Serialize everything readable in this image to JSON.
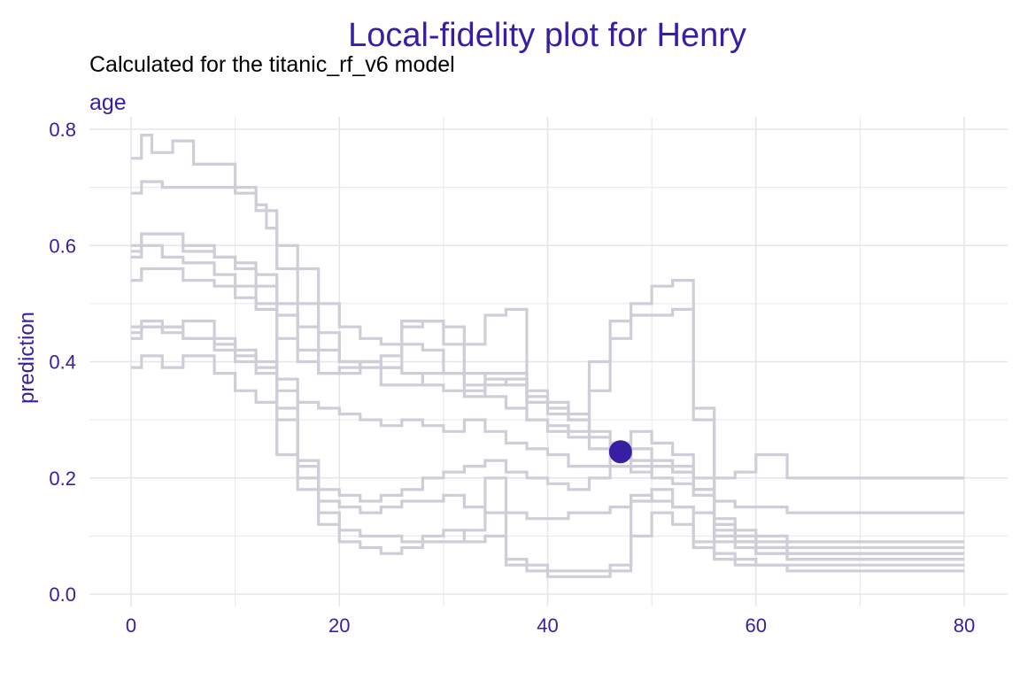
{
  "chart_data": {
    "type": "line",
    "title": "Local-fidelity plot for Henry",
    "subtitle": "Calculated for the titanic_rf_v6 model",
    "panel_label": "age",
    "xlabel": "",
    "ylabel": "prediction",
    "xlim": [
      -4,
      84
    ],
    "ylim": [
      0,
      0.8
    ],
    "x_ticks": [
      0,
      20,
      40,
      60,
      80
    ],
    "y_ticks": [
      0.0,
      0.2,
      0.4,
      0.6,
      0.8
    ],
    "y_tick_labels": [
      "0.0",
      "0.2",
      "0.4",
      "0.6",
      "0.8"
    ],
    "grid": true,
    "colors": {
      "accent": "#371ea3",
      "profile": "#ceced9",
      "grid": "#e6e6ea",
      "text": "#000000"
    },
    "observation": {
      "x": 47,
      "y": 0.245
    },
    "series": [
      {
        "x": [
          0,
          1,
          2,
          4,
          6,
          8,
          10,
          12,
          14,
          16,
          18,
          20,
          22,
          24,
          26,
          28,
          30,
          32,
          34,
          36,
          38,
          40,
          42,
          44,
          46,
          48,
          50,
          52,
          54,
          56,
          58,
          60,
          63,
          80
        ],
        "y": [
          0.75,
          0.79,
          0.76,
          0.78,
          0.74,
          0.74,
          0.7,
          0.66,
          0.6,
          0.56,
          0.5,
          0.46,
          0.44,
          0.43,
          0.43,
          0.42,
          0.38,
          0.38,
          0.37,
          0.36,
          0.33,
          0.31,
          0.3,
          0.28,
          0.26,
          0.25,
          0.23,
          0.22,
          0.2,
          0.2,
          0.21,
          0.24,
          0.2,
          0.2
        ]
      },
      {
        "x": [
          0,
          1,
          3,
          5,
          8,
          10,
          12,
          13,
          14,
          16,
          18,
          20,
          22,
          24,
          26,
          28,
          30,
          32,
          34,
          36,
          38,
          40,
          42,
          44,
          46,
          48,
          50,
          52,
          54,
          56,
          58,
          60,
          63,
          80
        ],
        "y": [
          0.69,
          0.71,
          0.7,
          0.7,
          0.7,
          0.69,
          0.67,
          0.63,
          0.56,
          0.5,
          0.45,
          0.4,
          0.39,
          0.39,
          0.38,
          0.36,
          0.35,
          0.35,
          0.34,
          0.32,
          0.3,
          0.28,
          0.27,
          0.25,
          0.24,
          0.23,
          0.22,
          0.21,
          0.18,
          0.16,
          0.15,
          0.15,
          0.14,
          0.14
        ]
      },
      {
        "x": [
          0,
          1,
          3,
          5,
          8,
          10,
          12,
          14,
          16,
          18,
          20,
          22,
          24,
          26,
          28,
          30,
          32,
          34,
          36,
          38,
          40,
          42,
          44,
          46,
          48,
          50,
          52,
          54,
          56,
          58,
          60,
          63,
          80
        ],
        "y": [
          0.6,
          0.62,
          0.62,
          0.6,
          0.58,
          0.56,
          0.55,
          0.5,
          0.46,
          0.42,
          0.4,
          0.4,
          0.39,
          0.47,
          0.47,
          0.46,
          0.36,
          0.38,
          0.38,
          0.35,
          0.33,
          0.31,
          0.4,
          0.47,
          0.48,
          0.48,
          0.49,
          0.3,
          0.13,
          0.11,
          0.1,
          0.09,
          0.09
        ]
      },
      {
        "x": [
          0,
          1,
          3,
          5,
          8,
          10,
          12,
          14,
          16,
          18,
          20,
          22,
          24,
          26,
          28,
          30,
          32,
          34,
          36,
          38,
          40,
          42,
          44,
          46,
          48,
          50,
          52,
          54,
          56,
          58,
          60,
          63,
          80
        ],
        "y": [
          0.59,
          0.62,
          0.62,
          0.59,
          0.58,
          0.57,
          0.53,
          0.48,
          0.42,
          0.38,
          0.38,
          0.4,
          0.41,
          0.46,
          0.47,
          0.43,
          0.34,
          0.36,
          0.37,
          0.3,
          0.29,
          0.28,
          0.35,
          0.44,
          0.5,
          0.53,
          0.54,
          0.32,
          0.12,
          0.1,
          0.09,
          0.08,
          0.08
        ]
      },
      {
        "x": [
          0,
          1,
          3,
          5,
          8,
          10,
          12,
          14,
          16,
          18,
          20,
          22,
          24,
          26,
          28,
          30,
          32,
          34,
          36,
          38,
          40,
          42,
          44,
          46,
          48,
          50,
          52,
          54,
          56,
          58,
          60,
          63,
          80
        ],
        "y": [
          0.54,
          0.56,
          0.56,
          0.54,
          0.53,
          0.51,
          0.49,
          0.44,
          0.4,
          0.38,
          0.39,
          0.4,
          0.36,
          0.36,
          0.38,
          0.38,
          0.43,
          0.48,
          0.49,
          0.34,
          0.32,
          0.3,
          0.27,
          0.24,
          0.22,
          0.2,
          0.19,
          0.18,
          0.1,
          0.09,
          0.08,
          0.07,
          0.07
        ]
      },
      {
        "x": [
          0,
          1,
          3,
          5,
          8,
          10,
          12,
          14,
          16,
          18,
          20,
          22,
          24,
          26,
          28,
          30,
          32,
          34,
          36,
          38,
          40,
          42,
          44,
          46,
          48,
          50,
          52,
          54,
          56,
          58,
          60,
          63,
          80
        ],
        "y": [
          0.46,
          0.47,
          0.46,
          0.47,
          0.44,
          0.42,
          0.4,
          0.37,
          0.33,
          0.32,
          0.31,
          0.3,
          0.29,
          0.3,
          0.29,
          0.28,
          0.3,
          0.28,
          0.26,
          0.25,
          0.24,
          0.22,
          0.22,
          0.22,
          0.21,
          0.22,
          0.21,
          0.17,
          0.12,
          0.1,
          0.07,
          0.06,
          0.06
        ]
      },
      {
        "x": [
          0,
          1,
          3,
          5,
          8,
          10,
          12,
          14,
          16,
          18,
          20,
          22,
          24,
          26,
          28,
          30,
          32,
          34,
          36,
          38,
          40,
          42,
          44,
          46,
          48,
          50,
          52,
          54,
          56,
          58,
          60,
          63,
          80
        ],
        "y": [
          0.44,
          0.46,
          0.46,
          0.44,
          0.43,
          0.41,
          0.39,
          0.32,
          0.22,
          0.14,
          0.11,
          0.1,
          0.1,
          0.09,
          0.1,
          0.11,
          0.09,
          0.1,
          0.06,
          0.05,
          0.04,
          0.04,
          0.04,
          0.05,
          0.16,
          0.18,
          0.15,
          0.09,
          0.07,
          0.06,
          0.05,
          0.05,
          0.05
        ]
      },
      {
        "x": [
          0,
          1,
          3,
          5,
          8,
          10,
          12,
          14,
          16,
          18,
          20,
          22,
          24,
          26,
          28,
          30,
          32,
          34,
          36,
          38,
          40,
          42,
          44,
          46,
          48,
          50,
          52,
          54,
          56,
          58,
          60,
          63,
          80
        ],
        "y": [
          0.39,
          0.41,
          0.39,
          0.41,
          0.38,
          0.35,
          0.33,
          0.24,
          0.18,
          0.12,
          0.09,
          0.08,
          0.07,
          0.08,
          0.09,
          0.09,
          0.11,
          0.2,
          0.05,
          0.04,
          0.03,
          0.03,
          0.03,
          0.04,
          0.1,
          0.14,
          0.12,
          0.08,
          0.06,
          0.05,
          0.05,
          0.04,
          0.04
        ]
      },
      {
        "x": [
          0,
          1,
          3,
          5,
          8,
          10,
          12,
          14,
          16,
          18,
          20,
          22,
          24,
          26,
          28,
          30,
          32,
          34,
          36,
          38,
          40,
          42,
          44,
          46,
          48,
          50,
          52,
          54,
          56,
          58,
          60,
          63,
          80
        ],
        "y": [
          0.45,
          0.46,
          0.45,
          0.44,
          0.42,
          0.4,
          0.38,
          0.3,
          0.23,
          0.18,
          0.17,
          0.16,
          0.17,
          0.18,
          0.2,
          0.21,
          0.22,
          0.23,
          0.21,
          0.2,
          0.19,
          0.18,
          0.2,
          0.26,
          0.28,
          0.26,
          0.24,
          0.18,
          0.11,
          0.09,
          0.08,
          0.07,
          0.07
        ]
      },
      {
        "x": [
          0,
          1,
          3,
          5,
          8,
          10,
          12,
          14,
          16,
          18,
          20,
          22,
          24,
          26,
          28,
          30,
          32,
          34,
          36,
          38,
          40,
          42,
          44,
          46,
          48,
          50,
          52,
          54,
          56,
          58,
          60,
          63,
          80
        ],
        "y": [
          0.58,
          0.6,
          0.58,
          0.57,
          0.55,
          0.53,
          0.5,
          0.35,
          0.2,
          0.16,
          0.15,
          0.14,
          0.15,
          0.16,
          0.16,
          0.17,
          0.15,
          0.14,
          0.14,
          0.13,
          0.13,
          0.14,
          0.14,
          0.15,
          0.17,
          0.16,
          0.15,
          0.14,
          0.09,
          0.08,
          0.07,
          0.06,
          0.06
        ]
      }
    ]
  }
}
